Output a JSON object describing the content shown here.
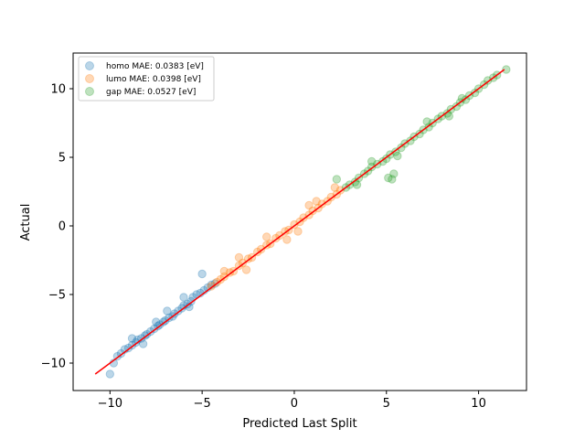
{
  "chart_data": {
    "type": "scatter",
    "xlabel": "Predicted Last Split",
    "ylabel": "Actual",
    "xlim": [
      -12,
      12.6
    ],
    "ylim": [
      -12,
      12.6
    ],
    "x_ticks": [
      -10,
      -5,
      0,
      5,
      10
    ],
    "y_ticks": [
      -10,
      -5,
      0,
      5,
      10
    ],
    "x_tick_labels": [
      "−10",
      "−5",
      "0",
      "5",
      "10"
    ],
    "y_tick_labels": [
      "−10",
      "−5",
      "0",
      "5",
      "10"
    ],
    "legend_position": "top-left",
    "series": [
      {
        "name": "homo MAE: 0.0383 [eV]",
        "color": "#1f77b4",
        "alpha": 0.3,
        "points": [
          [
            -10.0,
            -10.8
          ],
          [
            -9.8,
            -10.0
          ],
          [
            -9.6,
            -9.5
          ],
          [
            -9.4,
            -9.3
          ],
          [
            -9.2,
            -9.0
          ],
          [
            -9.0,
            -8.9
          ],
          [
            -8.8,
            -8.7
          ],
          [
            -8.6,
            -8.5
          ],
          [
            -8.5,
            -8.3
          ],
          [
            -8.3,
            -8.2
          ],
          [
            -8.1,
            -8.0
          ],
          [
            -8.0,
            -7.9
          ],
          [
            -7.8,
            -7.7
          ],
          [
            -7.6,
            -7.5
          ],
          [
            -7.4,
            -7.3
          ],
          [
            -7.3,
            -7.2
          ],
          [
            -7.1,
            -7.0
          ],
          [
            -7.0,
            -6.9
          ],
          [
            -6.8,
            -6.7
          ],
          [
            -6.6,
            -6.6
          ],
          [
            -6.5,
            -6.4
          ],
          [
            -6.3,
            -6.2
          ],
          [
            -6.1,
            -6.0
          ],
          [
            -6.0,
            -5.8
          ],
          [
            -5.8,
            -5.7
          ],
          [
            -5.6,
            -5.5
          ],
          [
            -5.5,
            -5.2
          ],
          [
            -5.3,
            -5.0
          ],
          [
            -5.1,
            -4.9
          ],
          [
            -4.9,
            -4.7
          ],
          [
            -4.7,
            -4.5
          ],
          [
            -4.5,
            -4.3
          ],
          [
            -4.3,
            -4.2
          ],
          [
            -5.0,
            -3.5
          ],
          [
            -6.0,
            -5.2
          ],
          [
            -7.5,
            -7.0
          ],
          [
            -8.8,
            -8.2
          ],
          [
            -6.9,
            -6.2
          ],
          [
            -5.7,
            -5.9
          ],
          [
            -8.2,
            -8.6
          ]
        ]
      },
      {
        "name": "lumo MAE: 0.0398 [eV]",
        "color": "#ff7f0e",
        "alpha": 0.3,
        "points": [
          [
            -4.5,
            -4.4
          ],
          [
            -4.2,
            -4.1
          ],
          [
            -4.0,
            -3.9
          ],
          [
            -3.8,
            -3.7
          ],
          [
            -3.5,
            -3.4
          ],
          [
            -3.3,
            -3.3
          ],
          [
            -3.0,
            -2.9
          ],
          [
            -2.8,
            -2.7
          ],
          [
            -2.5,
            -2.4
          ],
          [
            -2.3,
            -2.3
          ],
          [
            -2.0,
            -1.9
          ],
          [
            -1.8,
            -1.7
          ],
          [
            -1.5,
            -1.4
          ],
          [
            -1.3,
            -1.3
          ],
          [
            -1.0,
            -0.9
          ],
          [
            -0.8,
            -0.7
          ],
          [
            -0.5,
            -0.4
          ],
          [
            -0.3,
            -0.3
          ],
          [
            0.0,
            0.1
          ],
          [
            0.3,
            0.3
          ],
          [
            0.5,
            0.6
          ],
          [
            0.8,
            0.8
          ],
          [
            1.0,
            1.1
          ],
          [
            1.3,
            1.3
          ],
          [
            1.5,
            1.6
          ],
          [
            1.8,
            1.8
          ],
          [
            2.0,
            2.1
          ],
          [
            2.3,
            2.3
          ],
          [
            2.5,
            2.6
          ],
          [
            -3.0,
            -2.3
          ],
          [
            -1.5,
            -0.8
          ],
          [
            0.2,
            -0.4
          ],
          [
            1.2,
            1.8
          ],
          [
            -0.4,
            -1.0
          ],
          [
            -2.6,
            -3.2
          ],
          [
            2.2,
            2.8
          ],
          [
            -3.8,
            -3.3
          ],
          [
            0.8,
            1.5
          ]
        ]
      },
      {
        "name": "gap MAE: 0.0527 [eV]",
        "color": "#2ca02c",
        "alpha": 0.3,
        "points": [
          [
            2.3,
            3.4
          ],
          [
            2.8,
            2.8
          ],
          [
            3.0,
            3.0
          ],
          [
            3.3,
            3.2
          ],
          [
            3.5,
            3.5
          ],
          [
            3.8,
            3.8
          ],
          [
            4.0,
            4.0
          ],
          [
            4.2,
            4.3
          ],
          [
            4.5,
            4.5
          ],
          [
            4.8,
            4.7
          ],
          [
            5.0,
            4.9
          ],
          [
            5.2,
            5.2
          ],
          [
            5.5,
            5.4
          ],
          [
            5.8,
            5.7
          ],
          [
            6.0,
            6.0
          ],
          [
            6.3,
            6.2
          ],
          [
            6.5,
            6.5
          ],
          [
            6.8,
            6.7
          ],
          [
            7.0,
            7.0
          ],
          [
            7.3,
            7.2
          ],
          [
            7.5,
            7.5
          ],
          [
            7.8,
            7.8
          ],
          [
            8.0,
            8.0
          ],
          [
            8.3,
            8.2
          ],
          [
            8.5,
            8.5
          ],
          [
            8.8,
            8.7
          ],
          [
            9.0,
            9.0
          ],
          [
            9.3,
            9.2
          ],
          [
            9.5,
            9.5
          ],
          [
            9.8,
            9.7
          ],
          [
            10.0,
            10.0
          ],
          [
            10.3,
            10.3
          ],
          [
            10.5,
            10.6
          ],
          [
            10.8,
            10.8
          ],
          [
            11.0,
            11.0
          ],
          [
            11.5,
            11.4
          ],
          [
            5.3,
            3.4
          ],
          [
            5.1,
            3.5
          ],
          [
            5.4,
            3.8
          ],
          [
            4.2,
            4.7
          ],
          [
            3.4,
            3.0
          ],
          [
            5.6,
            5.1
          ],
          [
            7.2,
            7.6
          ],
          [
            9.1,
            9.3
          ],
          [
            8.4,
            8.0
          ]
        ]
      }
    ],
    "reference_line": {
      "color": "#ff0000",
      "from": [
        -10.8,
        -10.8
      ],
      "to": [
        11.4,
        11.4
      ]
    }
  }
}
